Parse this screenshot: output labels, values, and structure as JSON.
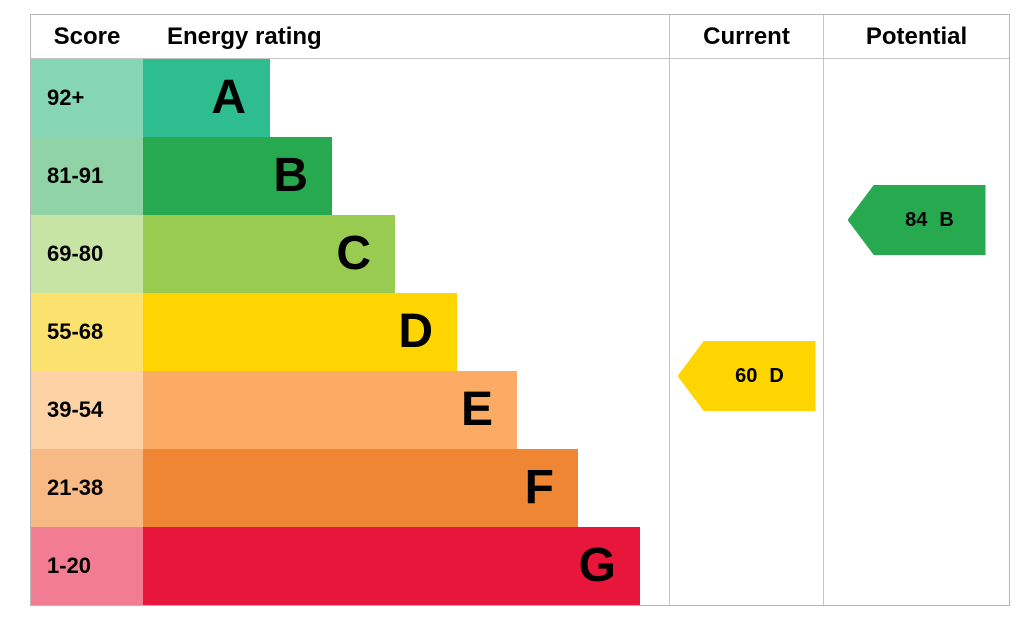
{
  "header": {
    "score": "Score",
    "energy_rating": "Energy rating",
    "current": "Current",
    "potential": "Potential"
  },
  "bands": [
    {
      "letter": "A",
      "score": "92+",
      "bar_color": "#2dbd8e",
      "score_cell_color": "#86d6b5"
    },
    {
      "letter": "B",
      "score": "81-91",
      "bar_color": "#27a94f",
      "score_cell_color": "#8fd3a6"
    },
    {
      "letter": "C",
      "score": "69-80",
      "bar_color": "#98cb4f",
      "score_cell_color": "#c8e4a5"
    },
    {
      "letter": "D",
      "score": "55-68",
      "bar_color": "#ffd500",
      "score_cell_color": "#fbe26e"
    },
    {
      "letter": "E",
      "score": "39-54",
      "bar_color": "#fcab64",
      "score_cell_color": "#fdd3a6"
    },
    {
      "letter": "F",
      "score": "21-38",
      "bar_color": "#ef8633",
      "score_cell_color": "#f7ba85"
    },
    {
      "letter": "G",
      "score": "1-20",
      "bar_color": "#e9163c",
      "score_cell_color": "#f27c91"
    }
  ],
  "current": {
    "value": "60",
    "letter": "D",
    "arrow_color": "#ffd500"
  },
  "potential": {
    "value": "84",
    "letter": "B",
    "arrow_color": "#27a94f"
  },
  "chart_data": {
    "type": "bar",
    "title": "Energy rating",
    "categories": [
      "A",
      "B",
      "C",
      "D",
      "E",
      "F",
      "G"
    ],
    "score_ranges": [
      "92+",
      "81-91",
      "69-80",
      "55-68",
      "39-54",
      "21-38",
      "1-20"
    ],
    "bar_lengths_relative": [
      1,
      2,
      3,
      4,
      5,
      6,
      7
    ],
    "current": {
      "score": 60,
      "rating": "D"
    },
    "potential": {
      "score": 84,
      "rating": "B"
    },
    "legend_position": "none",
    "grid": false
  }
}
